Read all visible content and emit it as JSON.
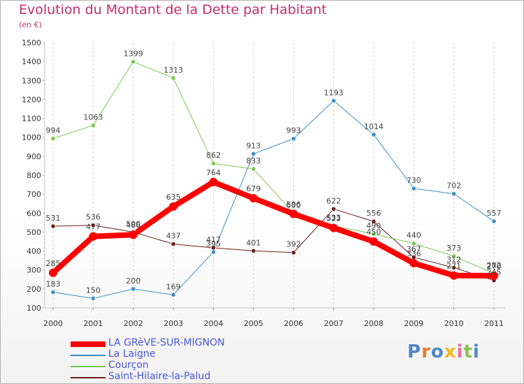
{
  "chart_data": {
    "type": "line",
    "title": "Evolution du Montant de la Dette par Habitant",
    "subtitle": "(en €)",
    "categories": [
      "2000",
      "2001",
      "2002",
      "2003",
      "2004",
      "2005",
      "2006",
      "2007",
      "2008",
      "2009",
      "2010",
      "2011"
    ],
    "y_ticks": [
      "1500",
      "1400",
      "1300",
      "1200",
      "1100",
      "1000",
      "900",
      "800",
      "700",
      "600",
      "500",
      "400",
      "300",
      "200",
      "100"
    ],
    "ylim": [
      100,
      1500
    ],
    "grid": "vertical dashed",
    "legend_position": "bottom",
    "series": [
      {
        "name": "LA GRèVE-SUR-MIGNON",
        "color": "#ff0000",
        "width": 8,
        "values": [
          285,
          477,
          486,
          635,
          764,
          679,
          596,
          522,
          450,
          336,
          271,
          270
        ]
      },
      {
        "name": "La Laigne",
        "color": "#3d8ec9",
        "width": 1,
        "values": [
          183,
          150,
          200,
          169,
          395,
          913,
          993,
          1193,
          1014,
          730,
          702,
          557
        ]
      },
      {
        "name": "Courçon",
        "color": "#7ec855",
        "width": 1,
        "values": [
          994,
          1063,
          1399,
          1313,
          862,
          833,
          600,
          533,
          490,
          440,
          373,
          282
        ]
      },
      {
        "name": "Saint-Hilaire-la-Palud",
        "color": "#6e1e1e",
        "width": 1,
        "values": [
          531,
          536,
          500,
          437,
          417,
          401,
          392,
          622,
          556,
          367,
          312,
          245
        ]
      }
    ],
    "data_labels": [
      [
        "285",
        "477",
        "486",
        "635",
        "764",
        "679",
        "596",
        "522",
        "450",
        "336",
        "271",
        "270"
      ],
      [
        "183",
        "150",
        "200",
        "169",
        "395",
        "913",
        "993",
        "1193",
        "1014",
        "730",
        "702",
        "557"
      ],
      [
        "994",
        "1063",
        "1399",
        "1313",
        "862",
        "833",
        "600",
        "533",
        "490",
        "440",
        "373",
        "282"
      ],
      [
        "531",
        "536",
        "500",
        "437",
        "417",
        "401",
        "392",
        "622",
        "556",
        "367",
        "312",
        "245"
      ]
    ]
  },
  "logo": {
    "text": "Proxiti",
    "letters": [
      "P",
      "r",
      "o",
      "x",
      "i",
      "t",
      "i"
    ]
  }
}
